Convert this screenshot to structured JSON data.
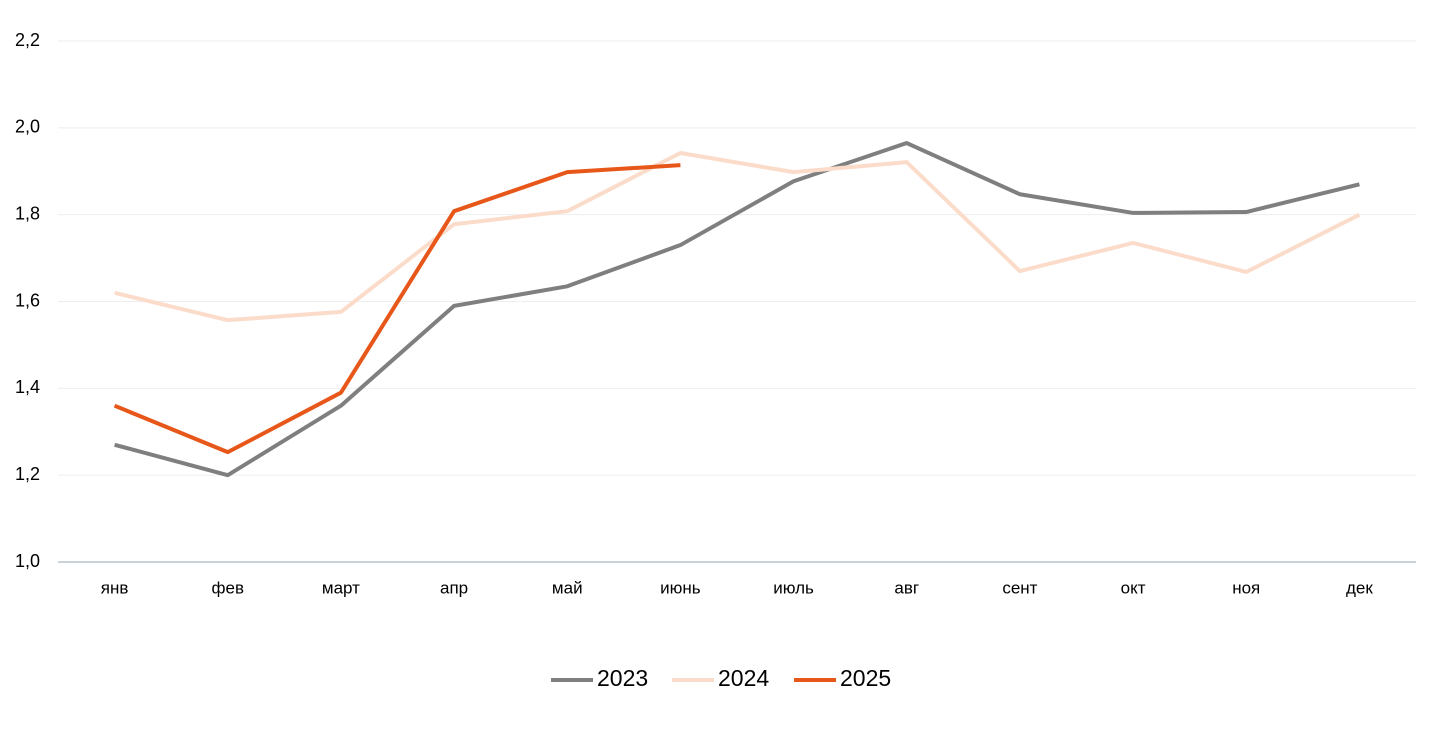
{
  "chart_data": {
    "type": "line",
    "categories": [
      "янв",
      "фев",
      "март",
      "апр",
      "май",
      "июнь",
      "июль",
      "авг",
      "сент",
      "окт",
      "ноя",
      "дек"
    ],
    "series": [
      {
        "name": "2023",
        "color": "#7f7f7f",
        "values": [
          1.27,
          1.2,
          1.36,
          1.59,
          1.635,
          1.73,
          1.877,
          1.965,
          1.847,
          1.804,
          1.806,
          1.87
        ]
      },
      {
        "name": "2024",
        "color": "#fbdcca",
        "values": [
          1.62,
          1.557,
          1.576,
          1.778,
          1.808,
          1.942,
          1.898,
          1.921,
          1.67,
          1.735,
          1.668,
          1.8
        ]
      },
      {
        "name": "2025",
        "color": "#e8571a",
        "values": [
          1.36,
          1.253,
          1.39,
          1.808,
          1.898,
          1.914,
          null,
          null,
          null,
          null,
          null,
          null
        ]
      }
    ],
    "ylim": [
      1.0,
      2.2
    ],
    "yticks": [
      {
        "value": 1.0,
        "label": "1,0"
      },
      {
        "value": 1.2,
        "label": "1,2"
      },
      {
        "value": 1.4,
        "label": "1,4"
      },
      {
        "value": 1.6,
        "label": "1,6"
      },
      {
        "value": 1.8,
        "label": "1,8"
      },
      {
        "value": 2.0,
        "label": "2,0"
      },
      {
        "value": 2.2,
        "label": "2,2"
      }
    ],
    "grid": true,
    "legend": "bottom"
  }
}
